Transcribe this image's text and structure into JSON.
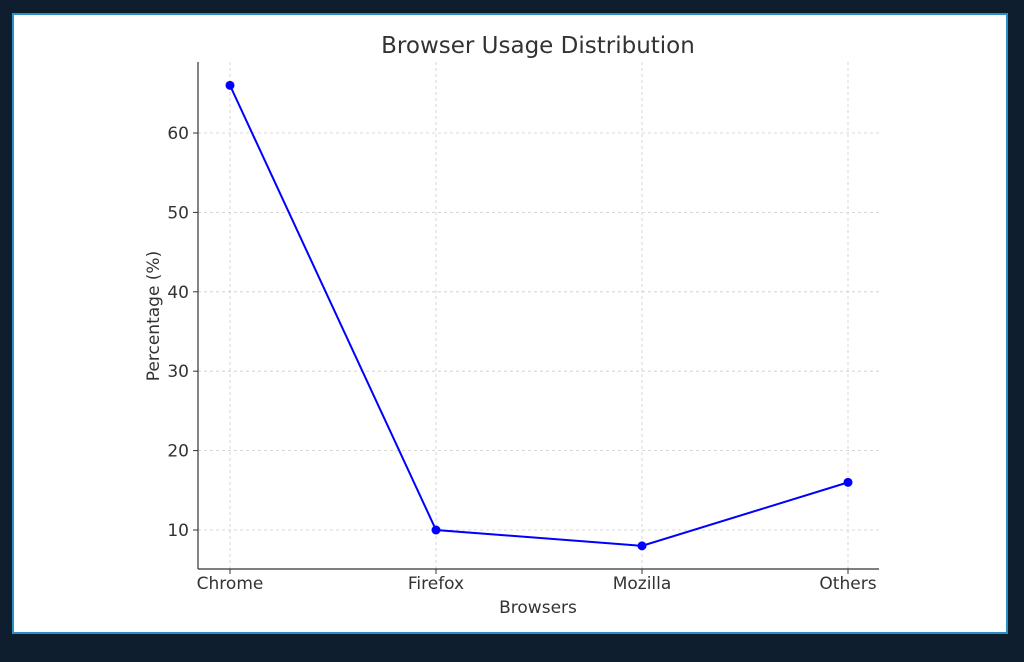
{
  "chart_data": {
    "type": "line",
    "title": "Browser Usage Distribution",
    "xlabel": "Browsers",
    "ylabel": "Percentage (%)",
    "categories": [
      "Chrome",
      "Firefox",
      "Mozilla",
      "Others"
    ],
    "series": [
      {
        "values": [
          66,
          10,
          8,
          16
        ],
        "color": "#0000ff",
        "marker": "circle"
      }
    ],
    "ylim": [
      5,
      69
    ],
    "yticks": [
      10,
      20,
      30,
      40,
      50,
      60
    ],
    "grid": true,
    "grid_style": "dashed",
    "legend": "none"
  },
  "colors": {
    "background": "#0f1e2e",
    "frame_border": "#2a8fc4",
    "plot_background": "#ffffff",
    "grid": "#cccccc",
    "text": "#333333"
  }
}
